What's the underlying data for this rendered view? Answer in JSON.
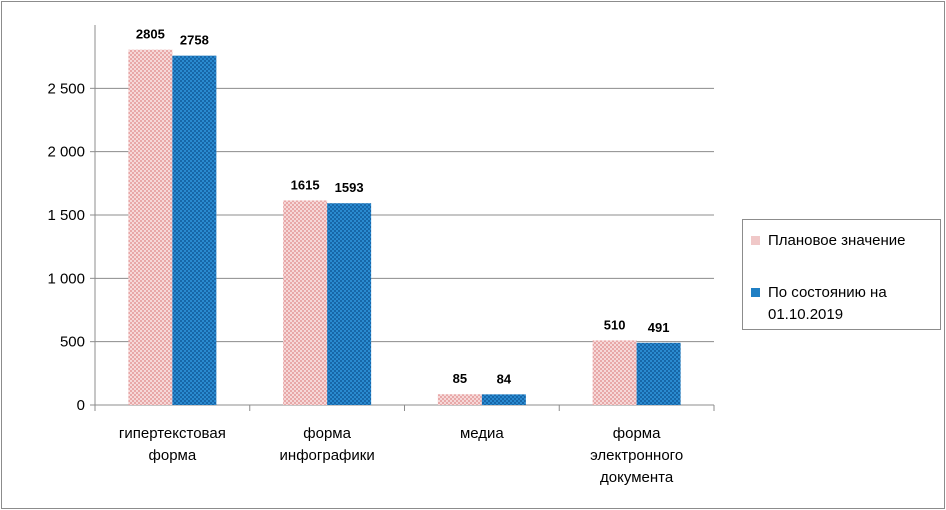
{
  "chart_data": {
    "type": "bar",
    "categories": [
      [
        "гипертекстовая",
        "форма"
      ],
      [
        "форма",
        "инфографики"
      ],
      [
        "медиа"
      ],
      [
        "форма",
        "электронного",
        "документа"
      ]
    ],
    "series": [
      {
        "name": "Плановое значение",
        "values": [
          2805,
          1615,
          85,
          510
        ],
        "color": "#f0c8c8"
      },
      {
        "name": [
          "По состоянию на",
          "01.10.2019"
        ],
        "values": [
          2758,
          1593,
          84,
          491
        ],
        "color": "#1f7fc4"
      }
    ],
    "yticks": [
      "0",
      "500",
      "1 000",
      "1 500",
      "2 000",
      "2 500"
    ],
    "ylim": [
      0,
      3000
    ],
    "xlabel": "",
    "ylabel": "",
    "title": "",
    "grid": true,
    "legend_position": "right"
  }
}
